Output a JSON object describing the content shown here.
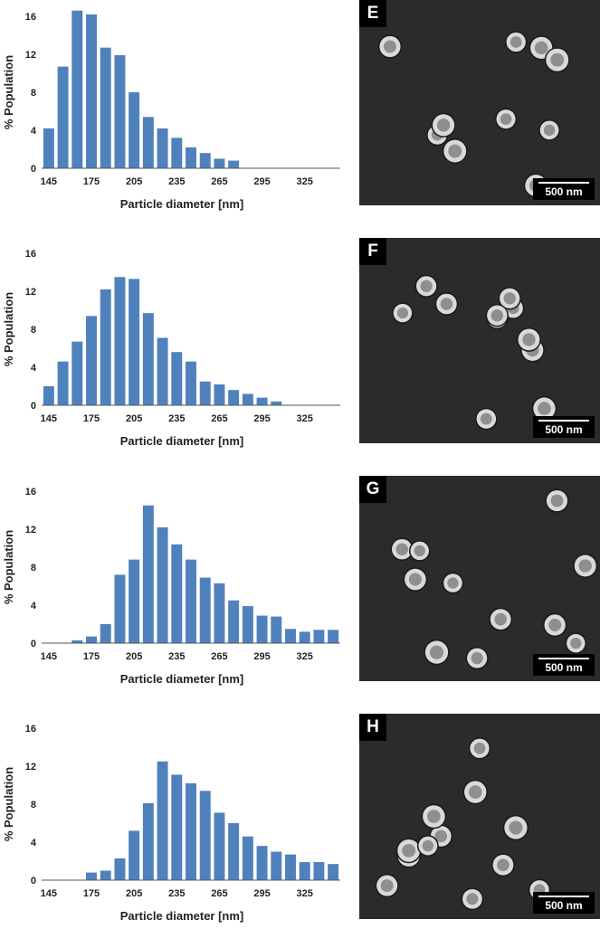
{
  "chart_data": [
    {
      "type": "bar",
      "xlabel": "Particle diameter [nm]",
      "ylabel": "% Population",
      "ylim": [
        0,
        16
      ],
      "yticks": [
        "0",
        "4",
        "8",
        "12",
        "16"
      ],
      "xtick_labels": [
        "145",
        "175",
        "205",
        "235",
        "265",
        "295",
        "325"
      ],
      "categories": [
        145,
        155,
        165,
        175,
        185,
        195,
        205,
        215,
        225,
        235,
        245,
        255,
        265,
        275,
        285,
        295,
        305,
        315,
        325,
        335,
        345
      ],
      "values": [
        4.2,
        10.7,
        16.6,
        16.2,
        12.7,
        11.9,
        8.0,
        5.4,
        4.2,
        3.2,
        2.2,
        1.6,
        1.0,
        0.8,
        0,
        0,
        0,
        0,
        0,
        0,
        0
      ]
    },
    {
      "type": "bar",
      "xlabel": "Particle diameter [nm]",
      "ylabel": "% Population",
      "ylim": [
        0,
        16
      ],
      "yticks": [
        "0",
        "4",
        "8",
        "12",
        "16"
      ],
      "xtick_labels": [
        "145",
        "175",
        "205",
        "235",
        "265",
        "295",
        "325"
      ],
      "categories": [
        145,
        155,
        165,
        175,
        185,
        195,
        205,
        215,
        225,
        235,
        245,
        255,
        265,
        275,
        285,
        295,
        305,
        315,
        325,
        335,
        345
      ],
      "values": [
        2.0,
        4.6,
        6.7,
        9.4,
        12.2,
        13.5,
        13.3,
        9.7,
        7.1,
        5.6,
        4.6,
        2.5,
        2.2,
        1.6,
        1.2,
        0.8,
        0.4,
        0,
        0,
        0,
        0
      ]
    },
    {
      "type": "bar",
      "xlabel": "Particle diameter [nm]",
      "ylabel": "% Population",
      "ylim": [
        0,
        16
      ],
      "yticks": [
        "0",
        "4",
        "8",
        "12",
        "16"
      ],
      "xtick_labels": [
        "145",
        "175",
        "205",
        "235",
        "265",
        "295",
        "325"
      ],
      "categories": [
        145,
        155,
        165,
        175,
        185,
        195,
        205,
        215,
        225,
        235,
        245,
        255,
        265,
        275,
        285,
        295,
        305,
        315,
        325,
        335,
        345
      ],
      "values": [
        0,
        0,
        0.3,
        0.7,
        2.0,
        7.2,
        8.8,
        14.5,
        12.2,
        10.4,
        8.8,
        6.9,
        6.3,
        4.5,
        3.9,
        2.9,
        2.8,
        1.5,
        1.2,
        1.4,
        1.4
      ]
    },
    {
      "type": "bar",
      "xlabel": "Particle diameter [nm]",
      "ylabel": "% Population",
      "ylim": [
        0,
        16
      ],
      "yticks": [
        "0",
        "4",
        "8",
        "12",
        "16"
      ],
      "xtick_labels": [
        "145",
        "175",
        "205",
        "235",
        "265",
        "295",
        "325"
      ],
      "categories": [
        145,
        155,
        165,
        175,
        185,
        195,
        205,
        215,
        225,
        235,
        245,
        255,
        265,
        275,
        285,
        295,
        305,
        315,
        325,
        335,
        345
      ],
      "values": [
        0,
        0,
        0,
        0.8,
        1.0,
        2.3,
        5.2,
        8.1,
        12.5,
        11.1,
        10.2,
        9.4,
        7.1,
        6.0,
        4.6,
        3.6,
        3.0,
        2.7,
        1.9,
        1.9,
        1.7
      ]
    }
  ],
  "sem_panels": [
    {
      "letter": "E",
      "scale": "500 nm"
    },
    {
      "letter": "F",
      "scale": "500 nm"
    },
    {
      "letter": "G",
      "scale": "500 nm"
    },
    {
      "letter": "H",
      "scale": "500 nm"
    }
  ]
}
